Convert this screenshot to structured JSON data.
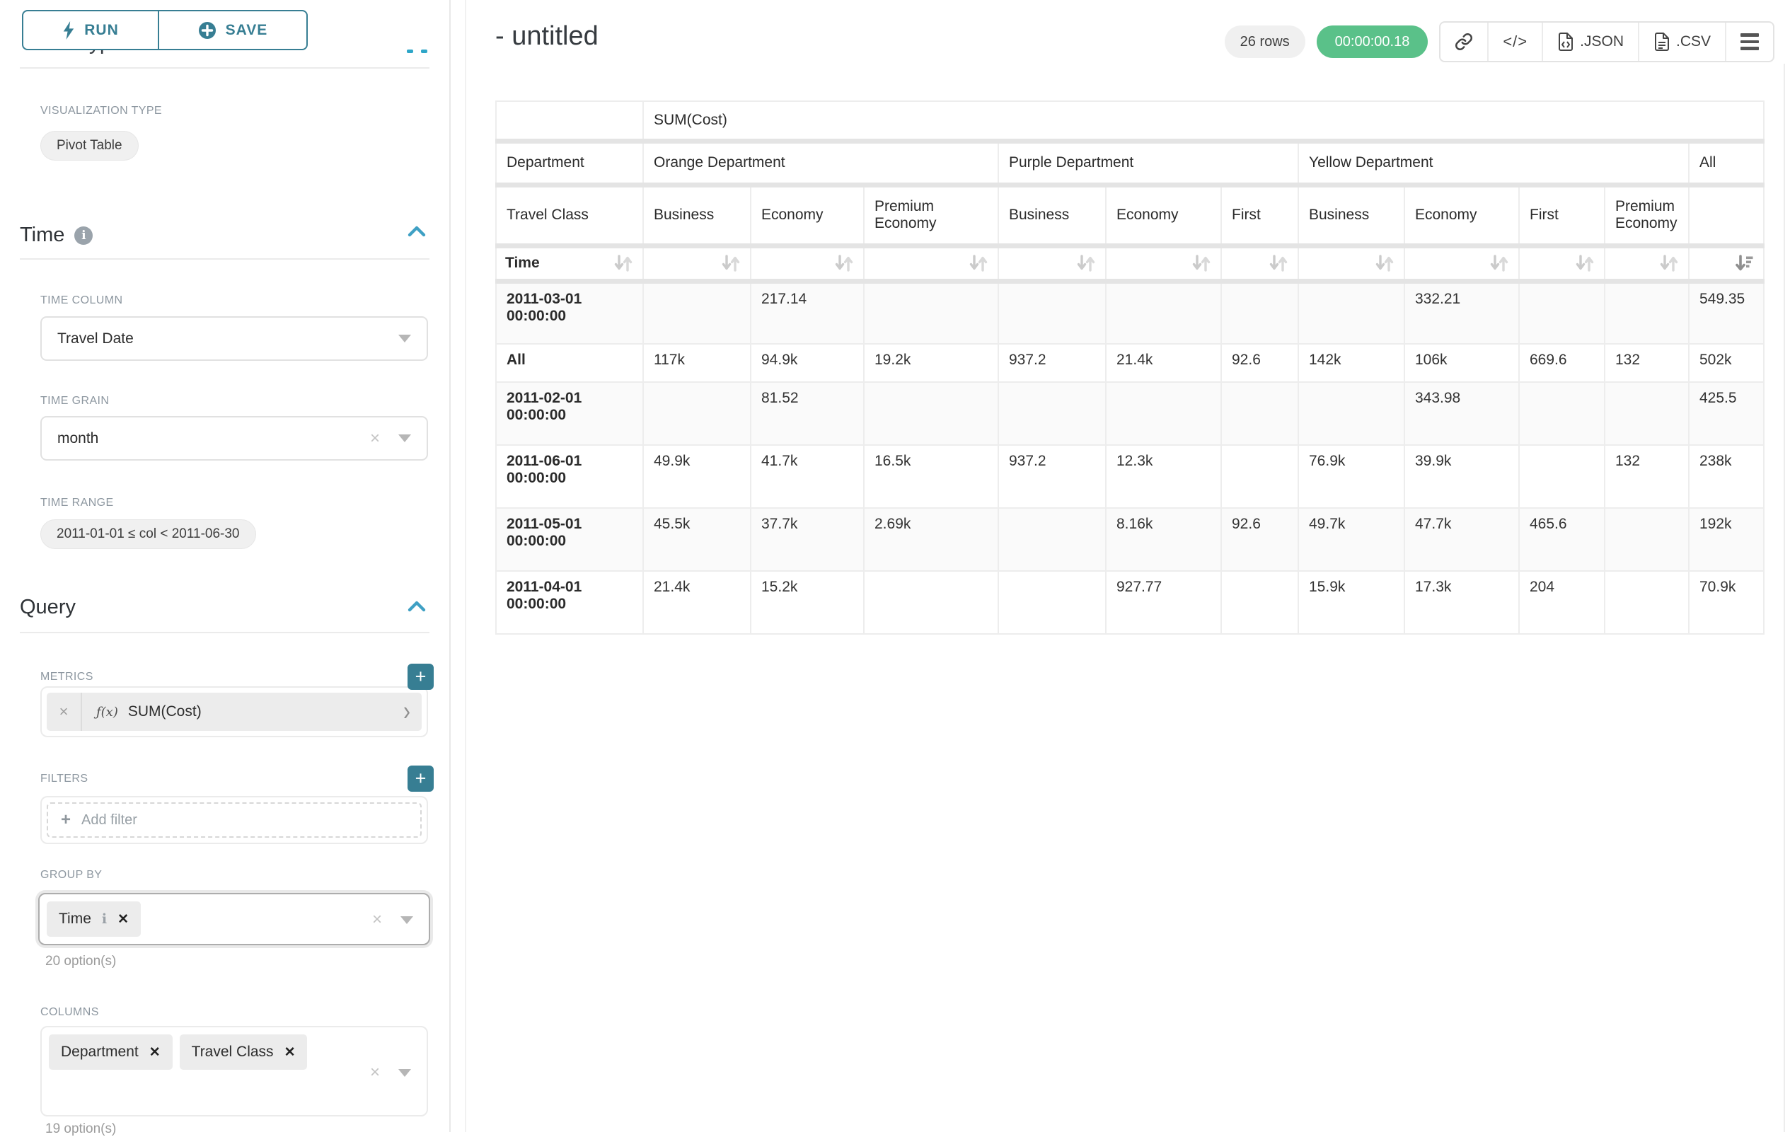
{
  "sidebar": {
    "run_label": "RUN",
    "save_label": "SAVE",
    "chart_type_heading": "Chart Type",
    "visualization_type_label": "VISUALIZATION TYPE",
    "visualization_type_value": "Pivot Table",
    "time": {
      "heading": "Time",
      "time_column_label": "TIME COLUMN",
      "time_column_value": "Travel Date",
      "time_grain_label": "TIME GRAIN",
      "time_grain_value": "month",
      "time_range_label": "TIME RANGE",
      "time_range_value": "2011-01-01 ≤ col < 2011-06-30"
    },
    "query": {
      "heading": "Query",
      "metrics_label": "METRICS",
      "metric_fn": "ƒ(x)",
      "metric_value": "SUM(Cost)",
      "filters_label": "FILTERS",
      "add_filter_label": "Add filter",
      "group_by_label": "GROUP BY",
      "group_by_tags": [
        {
          "label": "Time",
          "has_info": true
        }
      ],
      "group_by_options": "20 option(s)",
      "columns_label": "COLUMNS",
      "columns_tags": [
        {
          "label": "Department",
          "has_info": false
        },
        {
          "label": "Travel Class",
          "has_info": false
        }
      ],
      "columns_options": "19 option(s)"
    }
  },
  "header": {
    "title": "- untitled",
    "row_count": "26 rows",
    "timer": "00:00:00.18",
    "json_label": ".JSON",
    "csv_label": ".CSV"
  },
  "table": {
    "metric_header": "SUM(Cost)",
    "department_label": "Department",
    "travel_class_label": "Travel Class",
    "time_label": "Time",
    "all_label": "All",
    "departments": [
      {
        "name": "Orange Department",
        "classes": [
          "Business",
          "Economy",
          "Premium Economy"
        ]
      },
      {
        "name": "Purple Department",
        "classes": [
          "Business",
          "Economy",
          "First"
        ]
      },
      {
        "name": "Yellow Department",
        "classes": [
          "Business",
          "Economy",
          "First",
          "Premium Economy"
        ]
      }
    ],
    "rows": [
      {
        "time": "2011-03-01 00:00:00",
        "tall": true,
        "values": [
          "",
          "217.14",
          "",
          "",
          "",
          "",
          "",
          "332.21",
          "",
          "",
          "549.35"
        ]
      },
      {
        "time": "All",
        "tall": false,
        "values": [
          "117k",
          "94.9k",
          "19.2k",
          "937.2",
          "21.4k",
          "92.6",
          "142k",
          "106k",
          "669.6",
          "132",
          "502k"
        ]
      },
      {
        "time": "2011-02-01 00:00:00",
        "tall": true,
        "values": [
          "",
          "81.52",
          "",
          "",
          "",
          "",
          "",
          "343.98",
          "",
          "",
          "425.5"
        ]
      },
      {
        "time": "2011-06-01 00:00:00",
        "tall": true,
        "values": [
          "49.9k",
          "41.7k",
          "16.5k",
          "937.2",
          "12.3k",
          "",
          "76.9k",
          "39.9k",
          "",
          "132",
          "238k"
        ]
      },
      {
        "time": "2011-05-01 00:00:00",
        "tall": true,
        "values": [
          "45.5k",
          "37.7k",
          "2.69k",
          "",
          "8.16k",
          "92.6",
          "49.7k",
          "47.7k",
          "465.6",
          "",
          "192k"
        ]
      },
      {
        "time": "2011-04-01 00:00:00",
        "tall": true,
        "values": [
          "21.4k",
          "15.2k",
          "",
          "",
          "927.77",
          "",
          "15.9k",
          "17.3k",
          "204",
          "",
          "70.9k"
        ]
      }
    ]
  },
  "colors": {
    "accent": "#377E93",
    "accent_bright": "#3FA0C4",
    "success": "#5AC189"
  }
}
